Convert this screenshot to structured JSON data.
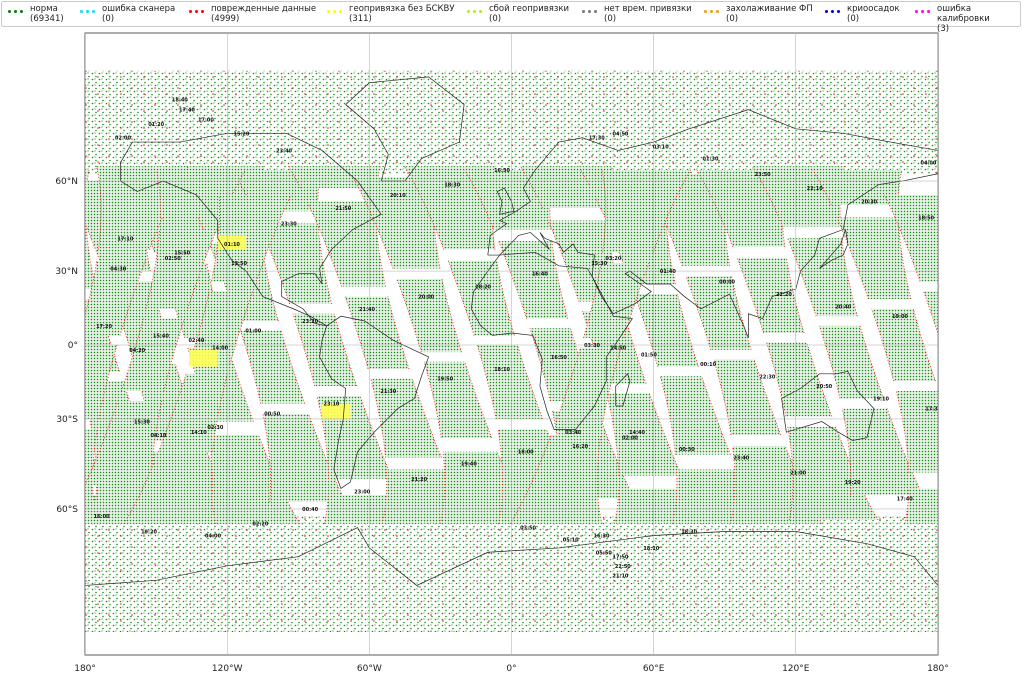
{
  "legend": [
    {
      "label": "норма",
      "count": "(69341)",
      "color": "#008000"
    },
    {
      "label": "ошибка сканера",
      "count": "(0)",
      "color": "#00e5ff"
    },
    {
      "label": "поврежденные данные",
      "count": "(4999)",
      "color": "#ff0000"
    },
    {
      "label": "геопривязка без БСКВУ",
      "count": "(311)",
      "color": "#ffff00"
    },
    {
      "label": "сбой геопривязки",
      "count": "(0)",
      "color": "#aaee22"
    },
    {
      "label": "нет врем. привязки",
      "count": "(0)",
      "color": "#777777"
    },
    {
      "label": "захолаживание ФП",
      "count": "(0)",
      "color": "#ff9900"
    },
    {
      "label": "криоосадок",
      "count": "(0)",
      "color": "#0000cc"
    },
    {
      "label": "ошибка калибровки",
      "count": "(3)",
      "color": "#ff00ff"
    }
  ],
  "chart_data": {
    "type": "map",
    "projection": "miller",
    "xlim": [
      -180,
      180
    ],
    "x_ticks": [
      "180°",
      "120°W",
      "60°W",
      "0°",
      "60°E",
      "120°E",
      "180°"
    ],
    "x_tick_values": [
      -180,
      -120,
      -60,
      0,
      60,
      120,
      180
    ],
    "y_ticks": [
      "60°N",
      "30°N",
      "0°",
      "30°S",
      "60°S"
    ],
    "y_tick_values": [
      60,
      30,
      0,
      -30,
      -60
    ],
    "grid": true,
    "legend_placement": "top",
    "swath_spacing_deg": 24.5,
    "yellow_regions": [
      {
        "lon": [
          -124,
          -112
        ],
        "lat": [
          38,
          43
        ]
      },
      {
        "lon": [
          -136,
          -124
        ],
        "lat": [
          -9,
          -2
        ]
      },
      {
        "lon": [
          -80,
          -68
        ],
        "lat": [
          -30,
          -24
        ]
      }
    ],
    "time_labels": [
      {
        "t": "18:40",
        "lon": -140,
        "lat": 79
      },
      {
        "t": "17:40",
        "lon": -137,
        "lat": 77
      },
      {
        "t": "01:20",
        "lon": -150,
        "lat": 74
      },
      {
        "t": "17:00",
        "lon": -129,
        "lat": 75
      },
      {
        "t": "02:00",
        "lon": -164,
        "lat": 71
      },
      {
        "t": "15:20",
        "lon": -114,
        "lat": 72
      },
      {
        "t": "23:40",
        "lon": -96,
        "lat": 68
      },
      {
        "t": "18:30",
        "lon": -25,
        "lat": 59
      },
      {
        "t": "20:10",
        "lon": -48,
        "lat": 56
      },
      {
        "t": "21:50",
        "lon": -71,
        "lat": 52
      },
      {
        "t": "23:30",
        "lon": -94,
        "lat": 47
      },
      {
        "t": "16:50",
        "lon": -4,
        "lat": 63
      },
      {
        "t": "17:10",
        "lon": -163,
        "lat": 42
      },
      {
        "t": "01:10",
        "lon": -118,
        "lat": 40
      },
      {
        "t": "15:50",
        "lon": -139,
        "lat": 37
      },
      {
        "t": "02:50",
        "lon": -143,
        "lat": 35
      },
      {
        "t": "13:50",
        "lon": -115,
        "lat": 33
      },
      {
        "t": "04:30",
        "lon": -166,
        "lat": 31
      },
      {
        "t": "18:20",
        "lon": -12,
        "lat": 24
      },
      {
        "t": "20:00",
        "lon": -36,
        "lat": 20
      },
      {
        "t": "21:40",
        "lon": -61,
        "lat": 15
      },
      {
        "t": "23:20",
        "lon": -85,
        "lat": 10
      },
      {
        "t": "17:20",
        "lon": -172,
        "lat": 8
      },
      {
        "t": "15:40",
        "lon": -148,
        "lat": 4
      },
      {
        "t": "01:00",
        "lon": -109,
        "lat": 6
      },
      {
        "t": "02:40",
        "lon": -133,
        "lat": 2
      },
      {
        "t": "04:20",
        "lon": -158,
        "lat": -2
      },
      {
        "t": "14:00",
        "lon": -123,
        "lat": -1
      },
      {
        "t": "19:50",
        "lon": -28,
        "lat": -14
      },
      {
        "t": "18:10",
        "lon": -4,
        "lat": -10
      },
      {
        "t": "21:30",
        "lon": -52,
        "lat": -19
      },
      {
        "t": "23:10",
        "lon": -76,
        "lat": -24
      },
      {
        "t": "15:30",
        "lon": -156,
        "lat": -31
      },
      {
        "t": "04:10",
        "lon": -149,
        "lat": -36
      },
      {
        "t": "14:10",
        "lon": -132,
        "lat": -35
      },
      {
        "t": "02:30",
        "lon": -125,
        "lat": -33
      },
      {
        "t": "00:50",
        "lon": -101,
        "lat": -28
      },
      {
        "t": "18:00",
        "lon": 6,
        "lat": -42
      },
      {
        "t": "19:40",
        "lon": -18,
        "lat": -46
      },
      {
        "t": "21:20",
        "lon": -39,
        "lat": -51
      },
      {
        "t": "23:00",
        "lon": -63,
        "lat": -55
      },
      {
        "t": "00:40",
        "lon": -85,
        "lat": -60
      },
      {
        "t": "02:20",
        "lon": -106,
        "lat": -64
      },
      {
        "t": "04:00",
        "lon": -126,
        "lat": -67
      },
      {
        "t": "19:20",
        "lon": -153,
        "lat": -66
      },
      {
        "t": "16:00",
        "lon": -173,
        "lat": -62
      },
      {
        "t": "03:50",
        "lon": 7,
        "lat": -65
      },
      {
        "t": "05:10",
        "lon": 25,
        "lat": -68
      },
      {
        "t": "16:30",
        "lon": 38,
        "lat": -67
      },
      {
        "t": "18:10",
        "lon": 59,
        "lat": -70
      },
      {
        "t": "18:30",
        "lon": 75,
        "lat": -66
      },
      {
        "t": "05:50",
        "lon": 39,
        "lat": -71
      },
      {
        "t": "17:50",
        "lon": 46,
        "lat": -72
      },
      {
        "t": "22:50",
        "lon": 47,
        "lat": -74
      },
      {
        "t": "21:10",
        "lon": 46,
        "lat": -76
      },
      {
        "t": "17:30",
        "lon": 36,
        "lat": 71
      },
      {
        "t": "04:50",
        "lon": 46,
        "lat": 72
      },
      {
        "t": "03:10",
        "lon": 63,
        "lat": 69
      },
      {
        "t": "01:30",
        "lon": 84,
        "lat": 66
      },
      {
        "t": "23:50",
        "lon": 106,
        "lat": 62
      },
      {
        "t": "22:10",
        "lon": 128,
        "lat": 58
      },
      {
        "t": "20:30",
        "lon": 151,
        "lat": 54
      },
      {
        "t": "18:50",
        "lon": 175,
        "lat": 49
      },
      {
        "t": "04:00",
        "lon": 176,
        "lat": 65
      },
      {
        "t": "15:30",
        "lon": 37,
        "lat": 33
      },
      {
        "t": "03:20",
        "lon": 43,
        "lat": 35
      },
      {
        "t": "01:40",
        "lon": 66,
        "lat": 30
      },
      {
        "t": "00:00",
        "lon": 91,
        "lat": 26
      },
      {
        "t": "22:20",
        "lon": 115,
        "lat": 21
      },
      {
        "t": "20:40",
        "lon": 140,
        "lat": 16
      },
      {
        "t": "19:00",
        "lon": 164,
        "lat": 12
      },
      {
        "t": "16:40",
        "lon": 12,
        "lat": 29
      },
      {
        "t": "03:30",
        "lon": 34,
        "lat": 0
      },
      {
        "t": "14:50",
        "lon": 45,
        "lat": -1
      },
      {
        "t": "01:50",
        "lon": 58,
        "lat": -4
      },
      {
        "t": "00:10",
        "lon": 83,
        "lat": -8
      },
      {
        "t": "22:30",
        "lon": 108,
        "lat": -13
      },
      {
        "t": "20:50",
        "lon": 132,
        "lat": -17
      },
      {
        "t": "19:10",
        "lon": 156,
        "lat": -22
      },
      {
        "t": "17:30",
        "lon": 178,
        "lat": -26
      },
      {
        "t": "16:50",
        "lon": 20,
        "lat": -5
      },
      {
        "t": "03:40",
        "lon": 26,
        "lat": -35
      },
      {
        "t": "16:20",
        "lon": 29,
        "lat": -40
      },
      {
        "t": "02:00",
        "lon": 50,
        "lat": -37
      },
      {
        "t": "14:40",
        "lon": 53,
        "lat": -35
      },
      {
        "t": "00:30",
        "lon": 74,
        "lat": -41
      },
      {
        "t": "23:40",
        "lon": 97,
        "lat": -44
      },
      {
        "t": "21:00",
        "lon": 121,
        "lat": -49
      },
      {
        "t": "19:20",
        "lon": 144,
        "lat": -52
      },
      {
        "t": "17:40",
        "lon": 166,
        "lat": -57
      }
    ]
  }
}
